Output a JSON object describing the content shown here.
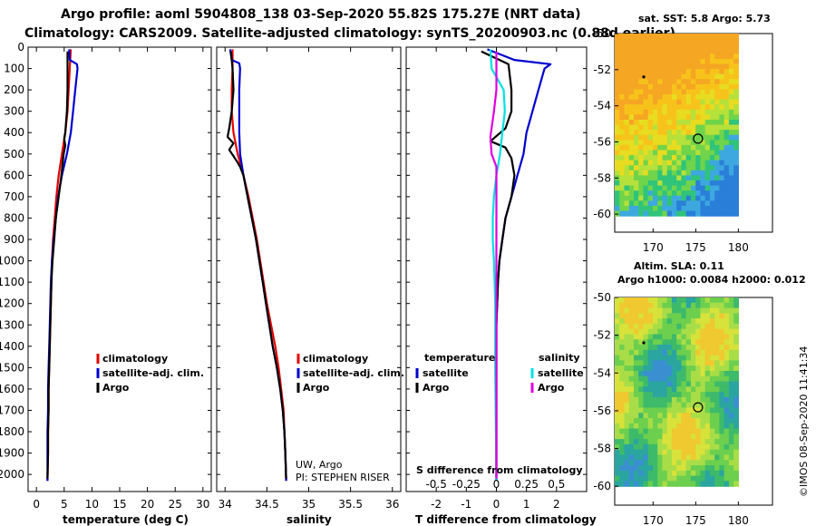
{
  "header": {
    "title_line1": "Argo profile: aoml 5904808_138 03-Sep-2020 55.82S 175.27E (NRT data)",
    "title_line2": "Climatology: CARS2009. Satellite-adjusted climatology: synTS_20200903.nc (0.88d earlier)"
  },
  "colors": {
    "climatology": "#e60000",
    "satellite": "#0000d0",
    "argo": "#000000",
    "sat_salinity": "#00e0e0",
    "argo_salinity_diff": "#e000e0"
  },
  "depth_axis": {
    "ticks": [
      "0",
      "100",
      "200",
      "300",
      "400",
      "500",
      "600",
      "700",
      "800",
      "900",
      "1000",
      "1100",
      "1200",
      "1300",
      "1400",
      "1500",
      "1600",
      "1700",
      "1800",
      "1900",
      "2000"
    ],
    "range": [
      0,
      2080
    ]
  },
  "chart_data": [
    {
      "type": "line",
      "title": "",
      "xlabel": "temperature (deg C)",
      "ylabel": "",
      "xlim": [
        -1.5,
        31.5
      ],
      "ylim": [
        2080,
        0
      ],
      "xticks": [
        "0",
        "5",
        "10",
        "15",
        "20",
        "25",
        "30"
      ],
      "xtick_values": [
        0,
        5,
        10,
        15,
        20,
        25,
        30
      ],
      "legend": {
        "placement": "lower-right",
        "items": [
          "climatology",
          "satellite-adj. clim.",
          "Argo"
        ]
      },
      "series": [
        {
          "name": "climatology",
          "color": "#e60000",
          "points": [
            [
              6.2,
              10
            ],
            [
              6.0,
              100
            ],
            [
              5.8,
              200
            ],
            [
              5.6,
              300
            ],
            [
              5.2,
              400
            ],
            [
              4.6,
              500
            ],
            [
              4.0,
              600
            ],
            [
              3.6,
              700
            ],
            [
              3.3,
              800
            ],
            [
              3.0,
              900
            ],
            [
              2.8,
              1000
            ],
            [
              2.7,
              1100
            ],
            [
              2.6,
              1200
            ],
            [
              2.5,
              1300
            ],
            [
              2.4,
              1400
            ],
            [
              2.3,
              1500
            ],
            [
              2.2,
              1600
            ],
            [
              2.2,
              1700
            ],
            [
              2.1,
              1800
            ],
            [
              2.1,
              1900
            ],
            [
              2.0,
              2030
            ]
          ]
        },
        {
          "name": "satellite-adj. clim.",
          "color": "#0000d0",
          "points": [
            [
              5.9,
              10
            ],
            [
              6.0,
              60
            ],
            [
              7.3,
              80
            ],
            [
              7.4,
              100
            ],
            [
              7.0,
              200
            ],
            [
              6.6,
              300
            ],
            [
              6.2,
              400
            ],
            [
              5.5,
              500
            ],
            [
              4.6,
              600
            ],
            [
              3.9,
              700
            ],
            [
              3.5,
              800
            ],
            [
              3.1,
              900
            ],
            [
              2.8,
              1000
            ],
            [
              2.6,
              1100
            ],
            [
              2.5,
              1200
            ],
            [
              2.4,
              1300
            ],
            [
              2.3,
              1400
            ],
            [
              2.2,
              1500
            ],
            [
              2.1,
              1600
            ],
            [
              2.1,
              1700
            ],
            [
              2.0,
              1800
            ],
            [
              2.0,
              1900
            ],
            [
              2.0,
              2030
            ]
          ]
        },
        {
          "name": "Argo",
          "color": "#000000",
          "points": [
            [
              5.6,
              20
            ],
            [
              5.6,
              100
            ],
            [
              5.6,
              200
            ],
            [
              5.5,
              300
            ],
            [
              5.2,
              400
            ],
            [
              5.0,
              430
            ],
            [
              5.2,
              460
            ],
            [
              4.9,
              500
            ],
            [
              4.5,
              600
            ],
            [
              4.0,
              700
            ],
            [
              3.5,
              800
            ],
            [
              3.2,
              900
            ],
            [
              2.9,
              1000
            ],
            [
              2.7,
              1100
            ],
            [
              2.6,
              1200
            ],
            [
              2.5,
              1300
            ],
            [
              2.4,
              1400
            ],
            [
              2.3,
              1500
            ],
            [
              2.2,
              1600
            ],
            [
              2.2,
              1700
            ],
            [
              2.1,
              1800
            ],
            [
              2.1,
              1900
            ],
            [
              2.0,
              2020
            ]
          ]
        }
      ]
    },
    {
      "type": "line",
      "title": "",
      "xlabel": "salinity",
      "ylabel": "",
      "xlim": [
        33.9,
        36.1
      ],
      "ylim": [
        2080,
        0
      ],
      "xticks": [
        "34",
        "34.5",
        "35",
        "35.5",
        "36"
      ],
      "xtick_values": [
        34,
        34.5,
        35,
        35.5,
        36
      ],
      "legend": {
        "placement": "lower-right",
        "items": [
          "climatology",
          "satellite-adj. clim.",
          "Argo"
        ]
      },
      "annotations": [
        "UW, Argo",
        "PI: STEPHEN RISER"
      ],
      "series": [
        {
          "name": "climatology",
          "color": "#e60000",
          "points": [
            [
              34.09,
              10
            ],
            [
              34.09,
              100
            ],
            [
              34.08,
              200
            ],
            [
              34.08,
              300
            ],
            [
              34.1,
              400
            ],
            [
              34.15,
              500
            ],
            [
              34.22,
              600
            ],
            [
              34.28,
              700
            ],
            [
              34.33,
              800
            ],
            [
              34.38,
              900
            ],
            [
              34.42,
              1000
            ],
            [
              34.46,
              1100
            ],
            [
              34.5,
              1200
            ],
            [
              34.55,
              1300
            ],
            [
              34.6,
              1400
            ],
            [
              34.64,
              1500
            ],
            [
              34.67,
              1600
            ],
            [
              34.7,
              1700
            ],
            [
              34.71,
              1800
            ],
            [
              34.72,
              1900
            ],
            [
              34.73,
              2030
            ]
          ]
        },
        {
          "name": "satellite-adj. clim.",
          "color": "#0000d0",
          "points": [
            [
              34.06,
              10
            ],
            [
              34.08,
              60
            ],
            [
              34.17,
              75
            ],
            [
              34.18,
              100
            ],
            [
              34.17,
              200
            ],
            [
              34.17,
              300
            ],
            [
              34.17,
              400
            ],
            [
              34.18,
              500
            ],
            [
              34.22,
              600
            ],
            [
              34.27,
              700
            ],
            [
              34.32,
              800
            ],
            [
              34.37,
              900
            ],
            [
              34.41,
              1000
            ],
            [
              34.45,
              1100
            ],
            [
              34.49,
              1200
            ],
            [
              34.53,
              1300
            ],
            [
              34.57,
              1400
            ],
            [
              34.62,
              1500
            ],
            [
              34.66,
              1600
            ],
            [
              34.69,
              1700
            ],
            [
              34.71,
              1800
            ],
            [
              34.72,
              1900
            ],
            [
              34.73,
              2030
            ]
          ]
        },
        {
          "name": "Argo",
          "color": "#000000",
          "points": [
            [
              34.07,
              20
            ],
            [
              34.09,
              100
            ],
            [
              34.1,
              200
            ],
            [
              34.08,
              300
            ],
            [
              34.05,
              380
            ],
            [
              34.03,
              420
            ],
            [
              34.1,
              450
            ],
            [
              34.05,
              480
            ],
            [
              34.1,
              510
            ],
            [
              34.15,
              540
            ],
            [
              34.18,
              560
            ],
            [
              34.22,
              600
            ],
            [
              34.27,
              700
            ],
            [
              34.32,
              800
            ],
            [
              34.37,
              900
            ],
            [
              34.41,
              1000
            ],
            [
              34.45,
              1100
            ],
            [
              34.49,
              1200
            ],
            [
              34.53,
              1300
            ],
            [
              34.57,
              1400
            ],
            [
              34.62,
              1500
            ],
            [
              34.66,
              1600
            ],
            [
              34.69,
              1700
            ],
            [
              34.71,
              1800
            ],
            [
              34.72,
              1900
            ],
            [
              34.73,
              2020
            ]
          ]
        }
      ]
    },
    {
      "type": "line",
      "title": "",
      "xlabel": "T difference from climatology",
      "ylabel": "",
      "xlim": [
        -3.0,
        3.0
      ],
      "ylim": [
        2080,
        0
      ],
      "xticks": [
        "-2",
        "-1",
        "0",
        "1",
        "2"
      ],
      "xtick_values": [
        -2,
        -1,
        0,
        1,
        2
      ],
      "secondary_xlabel": "S difference from climatology",
      "secondary_xticks": [
        "-0.5",
        "-0.25",
        "0",
        "0.25",
        "0.5"
      ],
      "secondary_xtick_values": [
        -0.5,
        -0.25,
        0,
        0.25,
        0.5
      ],
      "secondary_xlim": [
        -0.75,
        0.75
      ],
      "legend": {
        "placement": "lower",
        "temperature_heading": "temperature",
        "salinity_heading": "salinity",
        "items": [
          "satellite",
          "Argo",
          "satellite",
          "Argo"
        ]
      },
      "series": [
        {
          "name": "satellite T diff",
          "color": "#0000d0",
          "axis": "T",
          "points": [
            [
              -0.3,
              10
            ],
            [
              0.6,
              60
            ],
            [
              1.8,
              80
            ],
            [
              1.6,
              100
            ],
            [
              1.4,
              200
            ],
            [
              1.2,
              300
            ],
            [
              1.0,
              400
            ],
            [
              0.9,
              500
            ],
            [
              0.7,
              600
            ],
            [
              0.5,
              700
            ],
            [
              0.3,
              800
            ],
            [
              0.2,
              900
            ],
            [
              0.1,
              1000
            ],
            [
              0.05,
              1100
            ],
            [
              0.0,
              1300
            ],
            [
              0.0,
              1600
            ],
            [
              0.0,
              2030
            ]
          ]
        },
        {
          "name": "Argo T diff",
          "color": "#000000",
          "axis": "T",
          "points": [
            [
              -0.5,
              20
            ],
            [
              0.4,
              80
            ],
            [
              0.5,
              200
            ],
            [
              0.5,
              300
            ],
            [
              0.3,
              380
            ],
            [
              -0.2,
              440
            ],
            [
              0.3,
              470
            ],
            [
              0.5,
              520
            ],
            [
              0.6,
              600
            ],
            [
              0.5,
              700
            ],
            [
              0.3,
              800
            ],
            [
              0.2,
              900
            ],
            [
              0.1,
              1000
            ],
            [
              0.05,
              1100
            ],
            [
              0.0,
              1300
            ],
            [
              0.0,
              1600
            ],
            [
              0.0,
              2020
            ]
          ]
        },
        {
          "name": "satellite S diff",
          "color": "#00e0e0",
          "axis": "S",
          "points": [
            [
              -0.05,
              10
            ],
            [
              -0.04,
              100
            ],
            [
              0.06,
              200
            ],
            [
              0.07,
              300
            ],
            [
              0.05,
              400
            ],
            [
              0.03,
              500
            ],
            [
              0.0,
              600
            ],
            [
              -0.02,
              700
            ],
            [
              -0.03,
              800
            ],
            [
              -0.03,
              900
            ],
            [
              -0.02,
              1000
            ],
            [
              -0.01,
              1200
            ],
            [
              -0.01,
              1500
            ],
            [
              0.0,
              2030
            ]
          ]
        },
        {
          "name": "Argo S diff",
          "color": "#e000e0",
          "axis": "S",
          "points": [
            [
              0.0,
              20
            ],
            [
              0.0,
              200
            ],
            [
              -0.02,
              300
            ],
            [
              -0.05,
              420
            ],
            [
              -0.04,
              500
            ],
            [
              0.0,
              560
            ],
            [
              0.0,
              700
            ],
            [
              0.0,
              1000
            ],
            [
              0.0,
              2020
            ]
          ]
        }
      ]
    },
    {
      "type": "heatmap",
      "title": "sat. SST: 5.8 Argo: 5.73",
      "xticks": [
        "170",
        "175",
        "180"
      ],
      "xtick_values": [
        170,
        175,
        180
      ],
      "yticks": [
        "-50",
        "-52",
        "-54",
        "-56",
        "-58",
        "-60"
      ],
      "ytick_values": [
        -50,
        -52,
        -54,
        -56,
        -58,
        -60
      ],
      "xlim": [
        165.5,
        184
      ],
      "ylim": [
        -61,
        -50
      ],
      "data_extent": {
        "lon": [
          165.5,
          180
        ],
        "lat": [
          -60.1,
          -50
        ]
      },
      "markers": {
        "argo_position": [
          175.27,
          -55.82
        ],
        "previous_position": [
          168.9,
          -52.4
        ]
      }
    },
    {
      "type": "heatmap",
      "title": "Altim. SLA: 0.11",
      "subtitle": "Argo h1000: 0.0084 h2000: 0.012",
      "xticks": [
        "170",
        "175",
        "180"
      ],
      "xtick_values": [
        170,
        175,
        180
      ],
      "yticks": [
        "-50",
        "-52",
        "-54",
        "-56",
        "-58",
        "-60"
      ],
      "ytick_values": [
        -50,
        -52,
        -54,
        -56,
        -58,
        -60
      ],
      "xlim": [
        165.5,
        184
      ],
      "ylim": [
        -61,
        -50
      ],
      "data_extent": {
        "lon": [
          165.5,
          180
        ],
        "lat": [
          -60,
          -50
        ]
      },
      "markers": {
        "argo_position": [
          175.27,
          -55.82
        ],
        "previous_position": [
          168.9,
          -52.4
        ]
      }
    }
  ],
  "legend_labels": {
    "climatology": "climatology",
    "satellite_adj": "satellite-adj. clim.",
    "argo": "Argo",
    "temperature": "temperature",
    "salinity": "salinity",
    "satellite": "satellite"
  },
  "credit": "©IMOS 08-Sep-2020 11:41:34"
}
